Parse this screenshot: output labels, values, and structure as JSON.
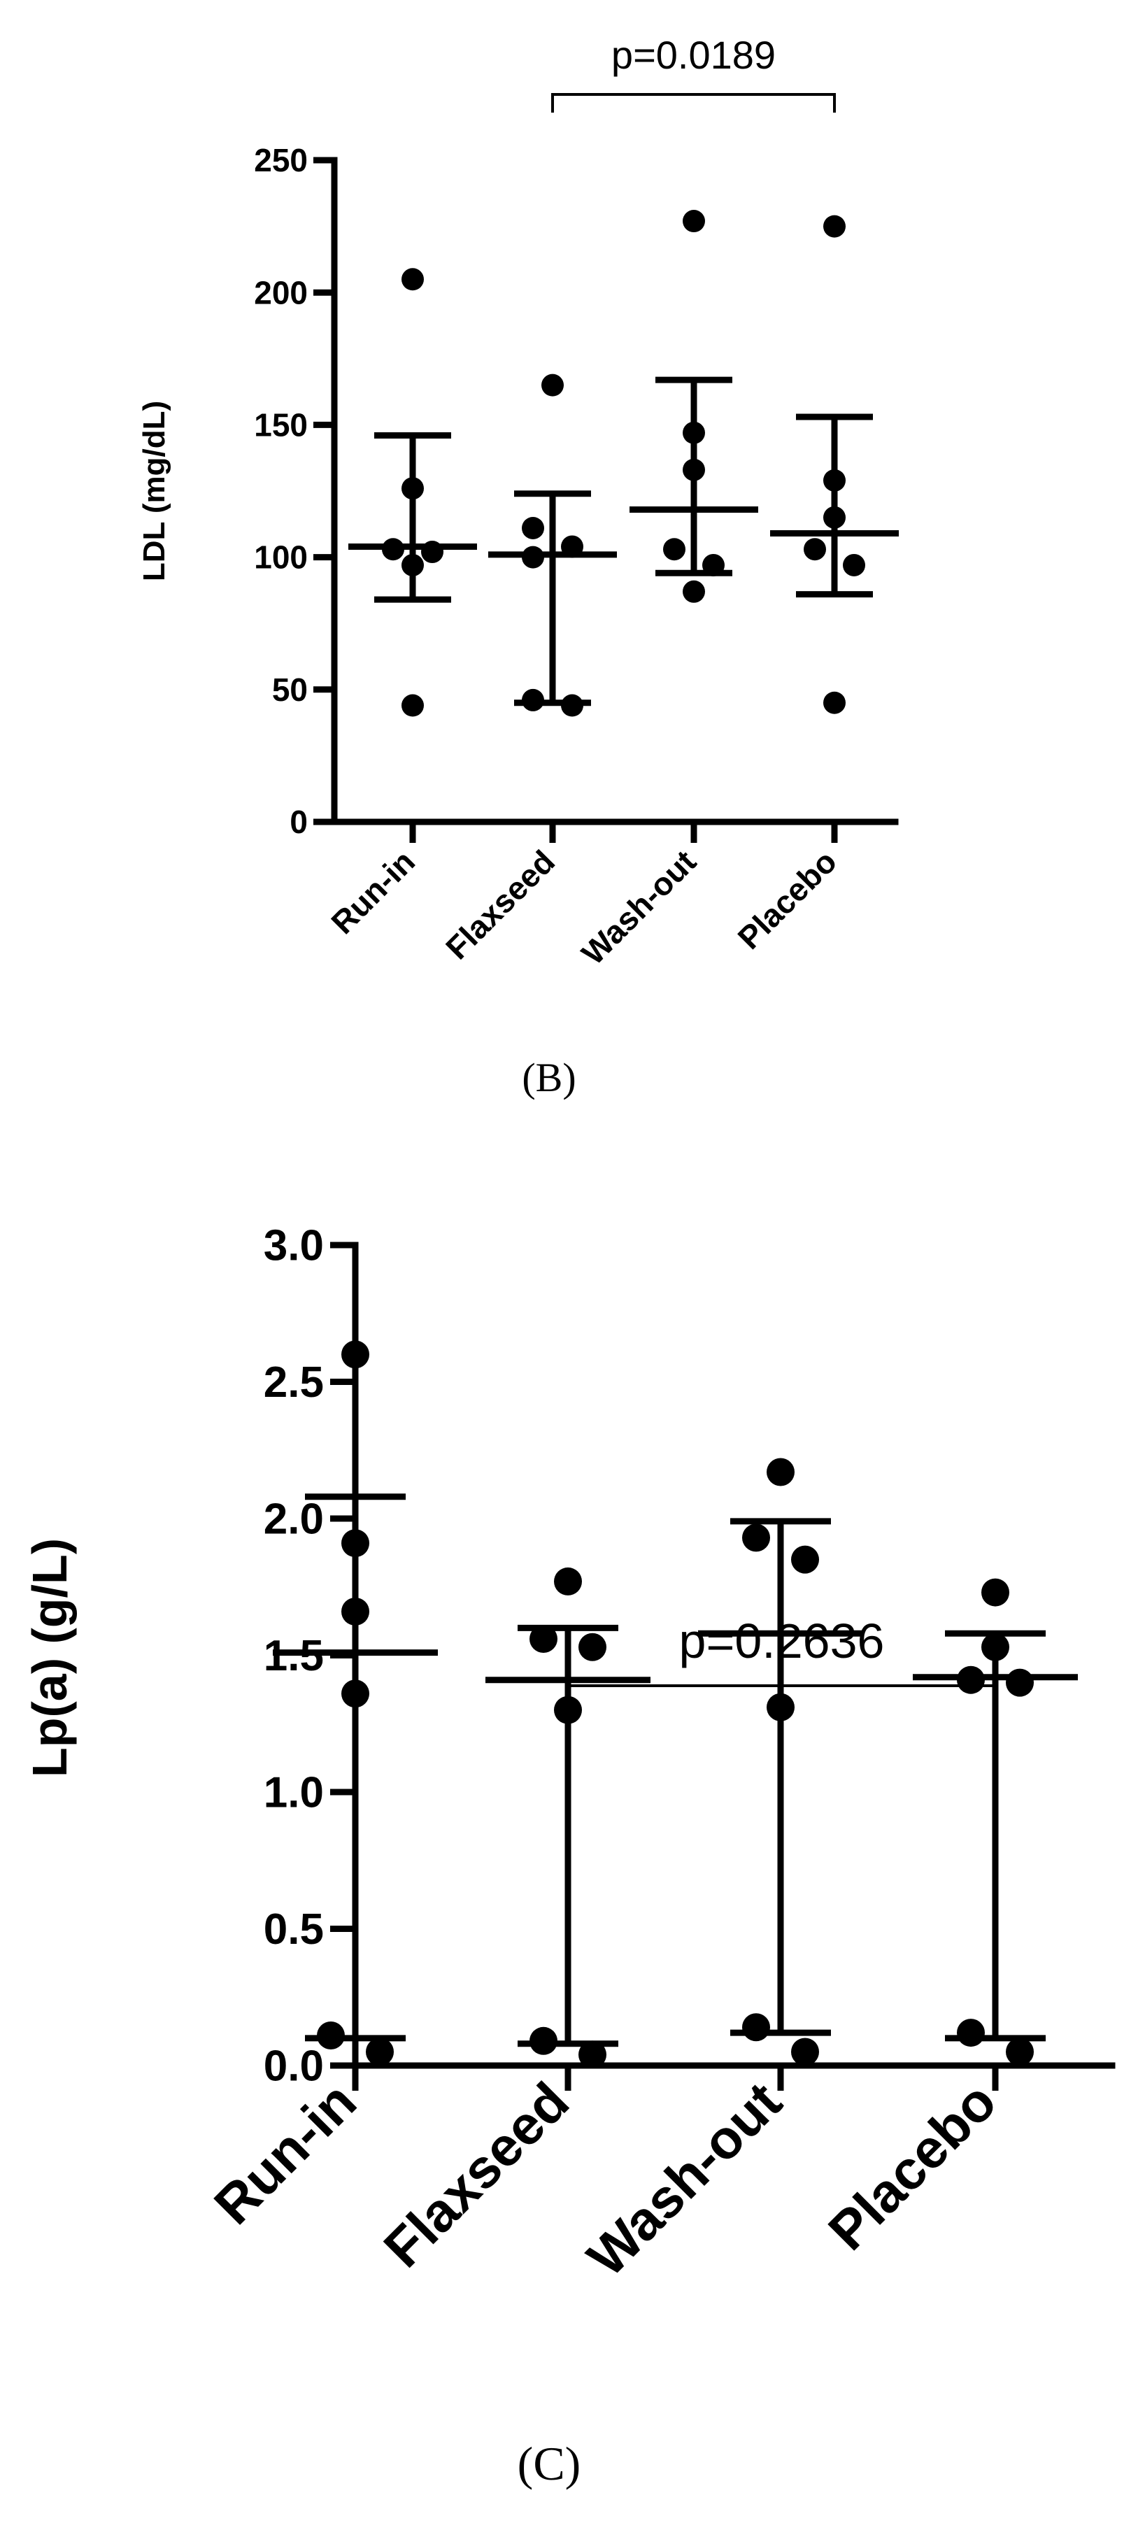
{
  "chart_data": [
    {
      "type": "scatter",
      "panel_label": "(B)",
      "ylabel": "LDL (mg/dL)",
      "categories": [
        "Run-in",
        "Flaxseed",
        "Wash-out",
        "Placebo"
      ],
      "ylim": [
        0,
        250
      ],
      "yticks": [
        "0",
        "50",
        "100",
        "150",
        "200",
        "250"
      ],
      "ytick_values": [
        0,
        50,
        100,
        150,
        200,
        250
      ],
      "points": [
        [
          205,
          126,
          103,
          102,
          97,
          44
        ],
        [
          165,
          111,
          104,
          100,
          46,
          44
        ],
        [
          227,
          147,
          133,
          103,
          97,
          87
        ],
        [
          225,
          129,
          115,
          103,
          97,
          45
        ]
      ],
      "summary": [
        {
          "center": 104,
          "upper": 146,
          "lower": 84
        },
        {
          "center": 101,
          "upper": 124,
          "lower": 45
        },
        {
          "center": 118,
          "upper": 167,
          "lower": 94
        },
        {
          "center": 109,
          "upper": 153,
          "lower": 86
        }
      ],
      "annotation": {
        "text": "p=0.0189",
        "from": "Flaxseed",
        "to": "Placebo"
      },
      "grid": false
    },
    {
      "type": "scatter",
      "panel_label": "(C)",
      "ylabel": "Lp(a) (g/L)",
      "categories": [
        "Run-in",
        "Flaxseed",
        "Wash-out",
        "Placebo"
      ],
      "ylim": [
        0,
        3.0
      ],
      "yticks": [
        "0.0",
        "0.5",
        "1.0",
        "1.5",
        "2.0",
        "2.5",
        "3.0"
      ],
      "ytick_values": [
        0,
        0.5,
        1.0,
        1.5,
        2.0,
        2.5,
        3.0
      ],
      "points": [
        [
          2.6,
          1.91,
          1.66,
          1.36,
          0.11,
          0.05
        ],
        [
          1.77,
          1.56,
          1.53,
          1.3,
          0.09,
          0.04
        ],
        [
          2.17,
          1.93,
          1.85,
          1.31,
          0.14,
          0.05
        ],
        [
          1.73,
          1.53,
          1.41,
          1.4,
          0.12,
          0.05
        ]
      ],
      "summary": [
        {
          "center": 1.51,
          "upper": 2.08,
          "lower": 0.1
        },
        {
          "center": 1.41,
          "upper": 1.6,
          "lower": 0.08
        },
        {
          "center": 1.58,
          "upper": 1.99,
          "lower": 0.12
        },
        {
          "center": 1.42,
          "upper": 1.58,
          "lower": 0.1
        }
      ],
      "annotation": {
        "text": "p=0.2636",
        "from": "Flaxseed",
        "to": "Placebo"
      },
      "grid": false
    }
  ]
}
